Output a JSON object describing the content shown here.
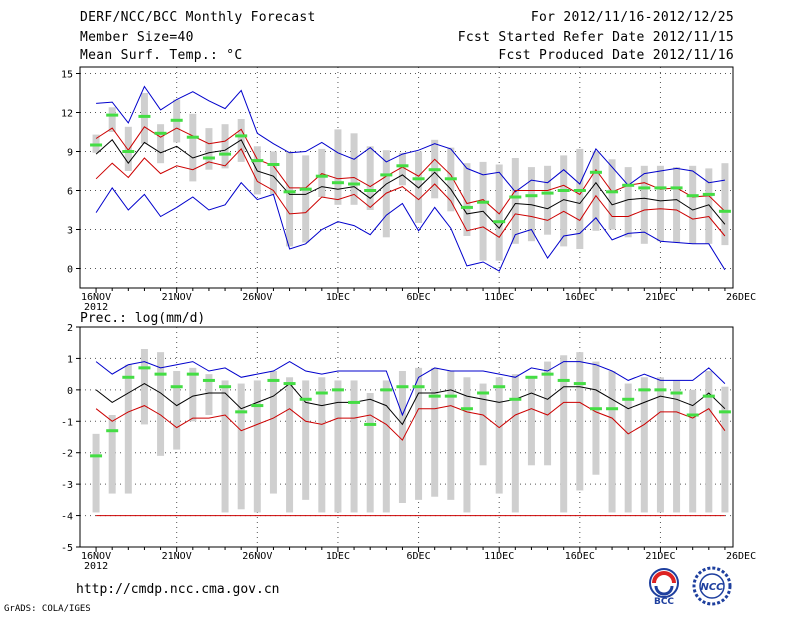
{
  "header": {
    "title": "DERF/NCC/BCC Monthly Forecast",
    "member_size": "Member Size=40",
    "variable": "Mean Surf. Temp.: °C",
    "period": "For 2012/11/16-2012/12/25",
    "started": "Fcst Started Refer Date 2012/11/15",
    "produced": "Fcst Produced Date 2012/11/16"
  },
  "footer": {
    "url": "http://cmdp.ncc.cma.gov.cn",
    "grads": "GrADS: COLA/IGES",
    "logo_bcc_text": "BCC",
    "logo_ncc_text": "NCC"
  },
  "chart_data": [
    {
      "type": "line",
      "title": "Mean Surf. Temp.: °C",
      "ylabel": "°C",
      "x_tick_labels": [
        "16NOV",
        "21NOV",
        "26NOV",
        "1DEC",
        "6DEC",
        "11DEC",
        "16DEC",
        "21DEC",
        "26DEC"
      ],
      "x_sublabel": "2012",
      "ylim": [
        -1.5,
        15.5
      ],
      "yticks": [
        0,
        3,
        6,
        9,
        12,
        15
      ],
      "grid": true,
      "days": 40,
      "series": [
        {
          "name": "max",
          "color": "#0000cc",
          "values": [
            12.7,
            12.8,
            11.2,
            14.0,
            12.2,
            13.0,
            13.6,
            12.9,
            12.3,
            13.7,
            10.4,
            9.6,
            8.9,
            9.0,
            9.7,
            8.9,
            8.4,
            9.3,
            8.2,
            8.8,
            9.1,
            9.6,
            9.2,
            7.7,
            7.2,
            7.4,
            5.9,
            6.8,
            6.6,
            7.6,
            6.5,
            9.2,
            7.8,
            6.4,
            7.3,
            7.5,
            7.7,
            7.5,
            6.6,
            6.8
          ]
        },
        {
          "name": "upper",
          "color": "#cc0000",
          "values": [
            10.0,
            10.8,
            9.1,
            10.9,
            10.1,
            10.8,
            10.2,
            9.6,
            9.8,
            10.7,
            8.4,
            7.9,
            6.2,
            6.2,
            7.3,
            6.9,
            7.0,
            6.3,
            7.1,
            7.8,
            7.1,
            8.4,
            7.2,
            5.0,
            5.3,
            4.2,
            6.0,
            6.0,
            6.0,
            6.4,
            5.7,
            7.6,
            5.9,
            6.4,
            6.6,
            6.1,
            6.2,
            5.5,
            5.6,
            4.4
          ]
        },
        {
          "name": "mean",
          "color": "#000000",
          "values": [
            8.8,
            9.9,
            8.1,
            9.7,
            8.9,
            9.4,
            8.5,
            8.9,
            9.1,
            9.9,
            7.5,
            7.1,
            5.7,
            5.7,
            6.3,
            6.1,
            6.3,
            5.4,
            6.5,
            7.2,
            6.2,
            7.4,
            6.1,
            4.2,
            4.4,
            3.1,
            5.0,
            4.9,
            4.6,
            5.3,
            5.0,
            6.6,
            4.9,
            5.3,
            5.4,
            5.2,
            5.3,
            4.5,
            4.9,
            3.4
          ]
        },
        {
          "name": "lower",
          "color": "#cc0000",
          "values": [
            6.9,
            8.1,
            7.0,
            8.5,
            7.3,
            7.9,
            7.6,
            8.2,
            7.9,
            9.2,
            6.7,
            6.0,
            4.2,
            4.3,
            5.5,
            5.3,
            5.7,
            4.7,
            5.8,
            6.3,
            5.3,
            6.5,
            5.2,
            2.9,
            3.2,
            2.4,
            4.2,
            4.0,
            3.7,
            4.4,
            3.7,
            5.6,
            4.0,
            4.0,
            4.5,
            4.6,
            4.5,
            3.8,
            4.0,
            2.5
          ]
        },
        {
          "name": "min",
          "color": "#0000cc",
          "values": [
            4.3,
            6.2,
            4.5,
            5.7,
            4.0,
            4.7,
            5.5,
            4.5,
            4.9,
            6.6,
            5.3,
            5.7,
            1.5,
            1.9,
            3.0,
            3.6,
            3.3,
            2.6,
            4.1,
            5.0,
            2.9,
            4.7,
            3.1,
            0.2,
            0.5,
            -0.2,
            2.6,
            3.0,
            0.8,
            2.5,
            2.7,
            3.9,
            2.2,
            2.7,
            2.8,
            2.1,
            2.0,
            1.9,
            1.9,
            -0.1
          ]
        },
        {
          "name": "observed",
          "color": "#44dd44",
          "values": [
            9.5,
            11.8,
            9.0,
            11.7,
            10.4,
            11.4,
            10.1,
            8.5,
            8.8,
            10.2,
            8.3,
            8.0,
            5.9,
            6.1,
            7.1,
            6.6,
            6.5,
            6.0,
            7.2,
            7.9,
            6.9,
            7.6,
            6.9,
            4.7,
            5.1,
            3.6,
            5.5,
            5.6,
            5.8,
            6.0,
            6.0,
            7.4,
            5.9,
            6.4,
            6.2,
            6.2,
            6.2,
            5.6,
            5.7,
            4.4
          ]
        }
      ],
      "box_low": [
        8.9,
        10.5,
        7.5,
        9.6,
        8.1,
        9.7,
        6.7,
        7.6,
        7.7,
        8.2,
        5.7,
        5.7,
        1.7,
        2.0,
        5.5,
        4.9,
        4.9,
        4.5,
        2.4,
        6.4,
        3.5,
        5.4,
        4.4,
        2.5,
        0.6,
        0.6,
        1.9,
        2.1,
        2.6,
        1.7,
        1.5,
        2.9,
        3.0,
        2.4,
        1.9,
        2.1,
        2.0,
        1.9,
        1.9,
        1.8
      ],
      "box_high": [
        10.3,
        12.4,
        10.9,
        13.5,
        11.1,
        13.0,
        11.9,
        10.8,
        11.1,
        11.5,
        9.4,
        9.0,
        9.0,
        8.7,
        9.2,
        10.7,
        10.4,
        9.4,
        9.1,
        8.9,
        9.0,
        9.9,
        9.3,
        8.1,
        8.2,
        8.0,
        8.5,
        7.8,
        7.9,
        8.7,
        9.2,
        9.0,
        8.4,
        7.8,
        7.9,
        7.9,
        7.8,
        7.9,
        7.7,
        8.1
      ]
    },
    {
      "type": "line",
      "title": "Prec.: log(mm/d)",
      "ylabel": "log(mm/d)",
      "x_tick_labels": [
        "16NOV",
        "21NOV",
        "26NOV",
        "1DEC",
        "6DEC",
        "11DEC",
        "16DEC",
        "21DEC",
        "26DEC"
      ],
      "x_sublabel": "2012",
      "ylim": [
        -5,
        2
      ],
      "yticks": [
        -5,
        -4,
        -3,
        -2,
        -1,
        0,
        1,
        2
      ],
      "grid": true,
      "days": 40,
      "series": [
        {
          "name": "max",
          "color": "#0000cc",
          "values": [
            0.9,
            0.5,
            0.8,
            0.9,
            0.7,
            0.8,
            0.9,
            0.6,
            0.7,
            0.4,
            0.5,
            0.6,
            0.9,
            0.6,
            0.5,
            0.6,
            0.6,
            0.6,
            0.6,
            -0.8,
            0.4,
            0.7,
            0.6,
            0.6,
            0.6,
            0.5,
            0.4,
            0.7,
            0.6,
            0.9,
            0.9,
            0.8,
            0.6,
            0.3,
            0.5,
            0.3,
            0.3,
            0.3,
            0.7,
            0.2
          ]
        },
        {
          "name": "mean",
          "color": "#000000",
          "values": [
            0.0,
            -0.4,
            -0.1,
            0.2,
            -0.1,
            -0.5,
            -0.2,
            -0.1,
            -0.1,
            -0.6,
            -0.4,
            -0.2,
            0.2,
            -0.4,
            -0.5,
            -0.4,
            -0.4,
            -0.3,
            -0.5,
            -1.1,
            -0.1,
            -0.1,
            0.0,
            -0.2,
            -0.3,
            -0.4,
            -0.3,
            -0.1,
            -0.3,
            0.1,
            0.1,
            0.0,
            -0.3,
            -0.6,
            -0.4,
            -0.2,
            -0.3,
            -0.5,
            -0.1,
            -0.6
          ]
        },
        {
          "name": "lower",
          "color": "#cc0000",
          "values": [
            -0.6,
            -1.0,
            -0.7,
            -0.5,
            -0.8,
            -1.2,
            -0.9,
            -0.9,
            -0.8,
            -1.3,
            -1.1,
            -0.9,
            -0.6,
            -1.0,
            -1.1,
            -0.9,
            -0.9,
            -0.8,
            -1.1,
            -1.6,
            -0.6,
            -0.6,
            -0.5,
            -0.7,
            -0.8,
            -1.2,
            -0.8,
            -0.6,
            -0.8,
            -0.4,
            -0.4,
            -0.7,
            -0.9,
            -1.4,
            -1.1,
            -0.7,
            -0.7,
            -0.9,
            -0.6,
            -1.3
          ]
        },
        {
          "name": "min",
          "color": "#cc0000",
          "values": [
            -4,
            -4,
            -4,
            -4,
            -4,
            -4,
            -4,
            -4,
            -4,
            -4,
            -4,
            -4,
            -4,
            -4,
            -4,
            -4,
            -4,
            -4,
            -4,
            -4,
            -4,
            -4,
            -4,
            -4,
            -4,
            -4,
            -4,
            -4,
            -4,
            -4,
            -4,
            -4,
            -4,
            -4,
            -4,
            -4,
            -4,
            -4,
            -4,
            -4
          ]
        },
        {
          "name": "observed",
          "color": "#44dd44",
          "values": [
            -2.1,
            -1.3,
            0.4,
            0.7,
            0.5,
            0.1,
            0.5,
            0.3,
            0.1,
            -0.7,
            -0.5,
            0.3,
            0.2,
            -0.3,
            -0.1,
            0.0,
            -0.4,
            -1.1,
            0.0,
            0.1,
            0.1,
            -0.2,
            -0.2,
            -0.6,
            -0.1,
            0.1,
            -0.3,
            0.4,
            0.5,
            0.3,
            0.2,
            -0.6,
            -0.6,
            -0.3,
            0.0,
            0.0,
            -0.1,
            -0.8,
            -0.2,
            -0.7
          ]
        }
      ],
      "box_low": [
        -3.9,
        -3.3,
        -3.3,
        -1.1,
        -2.1,
        -1.9,
        -1.0,
        -0.8,
        -3.9,
        -3.8,
        -3.9,
        -3.3,
        -3.9,
        -3.5,
        -3.9,
        -3.9,
        -3.9,
        -3.9,
        -3.9,
        -3.6,
        -3.5,
        -3.4,
        -3.5,
        -3.9,
        -2.4,
        -3.3,
        -3.9,
        -2.4,
        -2.4,
        -3.9,
        -3.2,
        -2.7,
        -3.9,
        -3.9,
        -3.9,
        -3.9,
        -3.9,
        -3.9,
        -3.9,
        -3.9
      ],
      "box_high": [
        -1.4,
        -0.8,
        0.8,
        1.3,
        1.2,
        0.6,
        0.7,
        0.5,
        0.3,
        0.2,
        0.3,
        0.6,
        0.4,
        0.3,
        0.4,
        0.3,
        0.3,
        -0.1,
        0.3,
        0.6,
        0.7,
        0.7,
        0.6,
        0.4,
        0.2,
        0.4,
        0.5,
        0.4,
        0.9,
        1.1,
        1.2,
        0.9,
        0.6,
        0.2,
        0.4,
        0.4,
        0.3,
        0.0,
        0.6,
        0.1
      ]
    }
  ]
}
